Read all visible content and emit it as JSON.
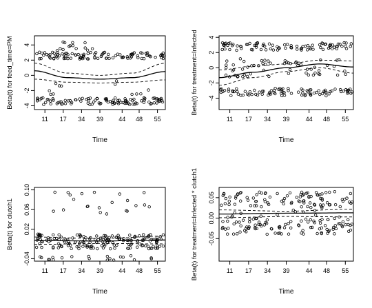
{
  "chart_data": [
    {
      "type": "scatter",
      "panel": "top-left",
      "xlabel": "Time",
      "ylabel": "Beta(t) for feed_time=PM",
      "ylim": [
        -4.5,
        5.2
      ],
      "yticks": [
        -4,
        -2,
        0,
        2,
        4
      ],
      "xticks": [
        "11",
        "17",
        "34",
        "39",
        "44",
        "48",
        "55"
      ],
      "point_bands": [
        {
          "center": 2.6,
          "spread": 0.9,
          "x_from": 0.01,
          "x_to": 0.99,
          "count": 105
        },
        {
          "center": -3.4,
          "spread": 0.9,
          "x_from": 0.01,
          "x_to": 0.99,
          "count": 105
        },
        {
          "center": 3.8,
          "spread": 1.2,
          "x_from": 0.05,
          "x_to": 0.45,
          "count": 14
        },
        {
          "center": -1.5,
          "spread": 2.5,
          "x_from": 0.1,
          "x_to": 0.95,
          "count": 12
        }
      ],
      "fit": {
        "x": [
          0,
          0.25,
          0.5,
          0.75,
          1.0
        ],
        "y": [
          0.6,
          -0.3,
          -0.5,
          -0.3,
          0.5
        ]
      },
      "band_upper": {
        "x": [
          0,
          0.25,
          0.5,
          0.75,
          1.0
        ],
        "y": [
          1.6,
          0.3,
          0.0,
          0.3,
          1.6
        ]
      },
      "band_lower": {
        "x": [
          0,
          0.25,
          0.5,
          0.75,
          1.0
        ],
        "y": [
          -0.5,
          -0.9,
          -1.0,
          -0.9,
          -0.6
        ]
      }
    },
    {
      "type": "scatter",
      "panel": "top-right",
      "xlabel": "Time",
      "ylabel": "Beta(t) for treatment=Infected",
      "ylim": [
        -5.5,
        4.2
      ],
      "yticks": [
        -4,
        -2,
        0,
        2,
        4
      ],
      "xticks": [
        "11",
        "17",
        "34",
        "39",
        "44",
        "48",
        "55"
      ],
      "point_bands": [
        {
          "center": 2.8,
          "spread": 1.0,
          "x_from": 0.01,
          "x_to": 0.99,
          "count": 90
        },
        {
          "center": -3.2,
          "spread": 1.0,
          "x_from": 0.01,
          "x_to": 0.99,
          "count": 90
        },
        {
          "center": 0.0,
          "spread": 2.4,
          "x_from": 0.05,
          "x_to": 0.97,
          "count": 60
        }
      ],
      "fit": {
        "x": [
          0,
          0.25,
          0.5,
          0.75,
          1.0
        ],
        "y": [
          -1.3,
          -0.6,
          0.0,
          0.5,
          0.1
        ]
      },
      "band_upper": {
        "x": [
          0,
          0.25,
          0.5,
          0.75,
          1.0
        ],
        "y": [
          -0.3,
          0.2,
          0.5,
          1.0,
          0.9
        ]
      },
      "band_lower": {
        "x": [
          0,
          0.25,
          0.5,
          0.75,
          1.0
        ],
        "y": [
          -2.3,
          -1.3,
          -0.5,
          0.0,
          -0.7
        ]
      }
    },
    {
      "type": "scatter",
      "panel": "bottom-left",
      "xlabel": "Time",
      "ylabel": "Beta(t) for clutch1",
      "ylim": [
        -0.045,
        0.105
      ],
      "yticks": [
        "-0.04",
        "0.02",
        "0.06",
        "0.10"
      ],
      "ytick_values": [
        -0.04,
        0.02,
        0.06,
        0.1
      ],
      "xticks": [
        "11",
        "17",
        "34",
        "39",
        "44",
        "48",
        "55"
      ],
      "point_bands": [
        {
          "center": -0.005,
          "spread": 0.03,
          "x_from": 0.01,
          "x_to": 0.99,
          "count": 170
        },
        {
          "center": 0.075,
          "spread": 0.05,
          "x_from": 0.05,
          "x_to": 0.9,
          "count": 22
        },
        {
          "center": -0.038,
          "spread": 0.01,
          "x_from": 0.02,
          "x_to": 0.95,
          "count": 20
        }
      ],
      "fit": {
        "x": [
          0,
          0.5,
          1.0
        ],
        "y": [
          -0.003,
          -0.004,
          -0.002
        ]
      },
      "band_upper": {
        "x": [
          0,
          0.5,
          1.0
        ],
        "y": [
          0.004,
          0.001,
          0.006
        ]
      },
      "band_lower": {
        "x": [
          0,
          0.5,
          1.0
        ],
        "y": [
          -0.011,
          -0.009,
          -0.01
        ]
      }
    },
    {
      "type": "scatter",
      "panel": "bottom-right",
      "xlabel": "Time",
      "ylabel": "Beta(t) for treatment=Infected * clutch1",
      "ylim": [
        -0.105,
        0.075
      ],
      "yticks": [
        "-0.05",
        "0.00",
        "0.05"
      ],
      "ytick_values": [
        -0.05,
        0.0,
        0.05
      ],
      "xticks": [
        "11",
        "17",
        "34",
        "39",
        "44",
        "48",
        "55"
      ],
      "point_bands": [
        {
          "center": 0.045,
          "spread": 0.04,
          "x_from": 0.01,
          "x_to": 0.99,
          "count": 80
        },
        {
          "center": -0.02,
          "spread": 0.04,
          "x_from": 0.01,
          "x_to": 0.99,
          "count": 80
        },
        {
          "center": 0.01,
          "spread": 0.08,
          "x_from": 0.05,
          "x_to": 0.97,
          "count": 50
        }
      ],
      "fit": {
        "x": [
          0,
          0.5,
          1.0
        ],
        "y": [
          0.01,
          0.012,
          0.013
        ]
      },
      "band_upper": {
        "x": [
          0,
          0.5,
          1.0
        ],
        "y": [
          0.02,
          0.017,
          0.022
        ]
      },
      "band_lower": {
        "x": [
          0,
          0.5,
          1.0
        ],
        "y": [
          0.001,
          0.004,
          0.003
        ]
      }
    }
  ]
}
